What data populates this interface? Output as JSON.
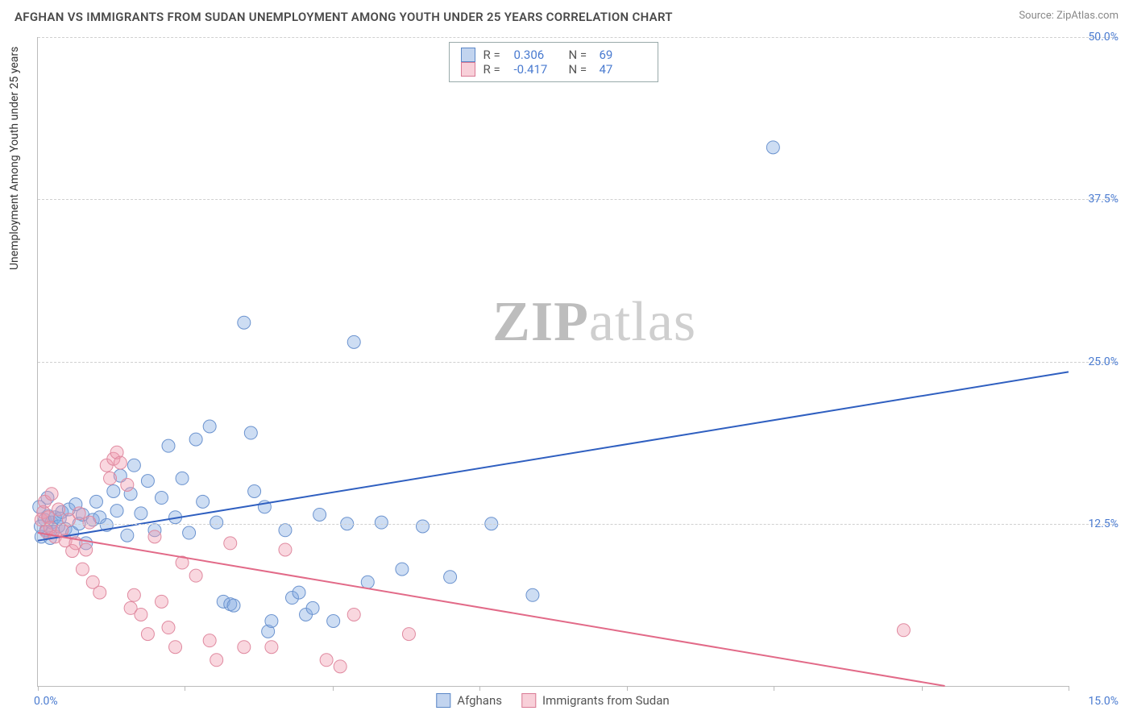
{
  "title": "AFGHAN VS IMMIGRANTS FROM SUDAN UNEMPLOYMENT AMONG YOUTH UNDER 25 YEARS CORRELATION CHART",
  "source_label": "Source:",
  "source_name": "ZipAtlas.com",
  "y_axis_label": "Unemployment Among Youth under 25 years",
  "watermark_a": "ZIP",
  "watermark_b": "atlas",
  "chart": {
    "type": "scatter",
    "xlim": [
      0,
      15
    ],
    "ylim": [
      0,
      50
    ],
    "x_ticks": [
      0,
      2.14,
      4.29,
      6.43,
      8.57,
      10.71,
      12.86,
      15
    ],
    "x_min_label": "0.0%",
    "x_max_label": "15.0%",
    "y_ticks": [
      12.5,
      25.0,
      37.5,
      50.0
    ],
    "y_tick_labels": [
      "12.5%",
      "25.0%",
      "37.5%",
      "50.0%"
    ],
    "grid_color": "#d0d0d0",
    "axis_color": "#bbbbbb",
    "background_color": "#ffffff",
    "tick_label_color": "#4a7bd0",
    "series": [
      {
        "name": "Afghans",
        "color_fill": "rgba(130,170,225,0.40)",
        "color_stroke": "#6b93cf",
        "marker_radius": 8,
        "trend": {
          "x1": 0,
          "y1": 11.2,
          "x2": 15,
          "y2": 24.2,
          "stroke": "#2f5fc0",
          "width": 2
        },
        "R_label": "R =",
        "R_value": "0.306",
        "N_label": "N =",
        "N_value": "69",
        "points": [
          [
            0.05,
            11.5
          ],
          [
            0.1,
            12.8
          ],
          [
            0.12,
            12.0
          ],
          [
            0.15,
            13.1
          ],
          [
            0.18,
            11.4
          ],
          [
            0.2,
            12.6
          ],
          [
            0.22,
            11.9
          ],
          [
            0.25,
            13.0
          ],
          [
            0.3,
            12.3
          ],
          [
            0.32,
            12.9
          ],
          [
            0.35,
            13.4
          ],
          [
            0.4,
            12.1
          ],
          [
            0.45,
            13.6
          ],
          [
            0.5,
            11.8
          ],
          [
            0.55,
            14.0
          ],
          [
            0.6,
            12.5
          ],
          [
            0.65,
            13.2
          ],
          [
            0.7,
            11.0
          ],
          [
            0.8,
            12.8
          ],
          [
            0.85,
            14.2
          ],
          [
            0.9,
            13.0
          ],
          [
            1.0,
            12.4
          ],
          [
            1.1,
            15.0
          ],
          [
            1.15,
            13.5
          ],
          [
            1.2,
            16.2
          ],
          [
            1.3,
            11.6
          ],
          [
            1.35,
            14.8
          ],
          [
            1.4,
            17.0
          ],
          [
            1.5,
            13.3
          ],
          [
            1.6,
            15.8
          ],
          [
            1.7,
            12.0
          ],
          [
            1.8,
            14.5
          ],
          [
            1.9,
            18.5
          ],
          [
            2.0,
            13.0
          ],
          [
            2.1,
            16.0
          ],
          [
            2.2,
            11.8
          ],
          [
            2.3,
            19.0
          ],
          [
            2.4,
            14.2
          ],
          [
            2.5,
            20.0
          ],
          [
            2.6,
            12.6
          ],
          [
            2.7,
            6.5
          ],
          [
            2.8,
            6.3
          ],
          [
            2.85,
            6.2
          ],
          [
            3.0,
            28.0
          ],
          [
            3.1,
            19.5
          ],
          [
            3.15,
            15.0
          ],
          [
            3.3,
            13.8
          ],
          [
            3.35,
            4.2
          ],
          [
            3.4,
            5.0
          ],
          [
            3.6,
            12.0
          ],
          [
            3.7,
            6.8
          ],
          [
            3.8,
            7.2
          ],
          [
            3.9,
            5.5
          ],
          [
            4.0,
            6.0
          ],
          [
            4.1,
            13.2
          ],
          [
            4.3,
            5.0
          ],
          [
            4.5,
            12.5
          ],
          [
            4.6,
            26.5
          ],
          [
            4.8,
            8.0
          ],
          [
            5.0,
            12.6
          ],
          [
            5.3,
            9.0
          ],
          [
            5.6,
            12.3
          ],
          [
            6.0,
            8.4
          ],
          [
            6.6,
            12.5
          ],
          [
            7.2,
            7.0
          ],
          [
            10.7,
            41.5
          ],
          [
            0.02,
            13.8
          ],
          [
            0.04,
            12.3
          ],
          [
            0.14,
            14.5
          ]
        ]
      },
      {
        "name": "Immigrants from Sudan",
        "color_fill": "rgba(240,155,175,0.40)",
        "color_stroke": "#e08aa0",
        "marker_radius": 8,
        "trend": {
          "x1": 0,
          "y1": 11.8,
          "x2": 13.2,
          "y2": 0.0,
          "stroke": "#e26a88",
          "width": 2
        },
        "R_label": "R =",
        "R_value": "-0.417",
        "N_label": "N =",
        "N_value": "47",
        "points": [
          [
            0.05,
            12.8
          ],
          [
            0.08,
            13.4
          ],
          [
            0.1,
            14.2
          ],
          [
            0.12,
            11.9
          ],
          [
            0.15,
            13.0
          ],
          [
            0.18,
            12.2
          ],
          [
            0.2,
            14.8
          ],
          [
            0.25,
            11.5
          ],
          [
            0.3,
            13.6
          ],
          [
            0.35,
            12.0
          ],
          [
            0.4,
            11.2
          ],
          [
            0.45,
            12.8
          ],
          [
            0.5,
            10.4
          ],
          [
            0.55,
            11.0
          ],
          [
            0.6,
            13.3
          ],
          [
            0.65,
            9.0
          ],
          [
            0.7,
            10.5
          ],
          [
            0.75,
            12.6
          ],
          [
            0.8,
            8.0
          ],
          [
            0.9,
            7.2
          ],
          [
            1.0,
            17.0
          ],
          [
            1.05,
            16.0
          ],
          [
            1.1,
            17.5
          ],
          [
            1.15,
            18.0
          ],
          [
            1.2,
            17.2
          ],
          [
            1.3,
            15.5
          ],
          [
            1.35,
            6.0
          ],
          [
            1.4,
            7.0
          ],
          [
            1.5,
            5.5
          ],
          [
            1.6,
            4.0
          ],
          [
            1.7,
            11.5
          ],
          [
            1.8,
            6.5
          ],
          [
            1.9,
            4.5
          ],
          [
            2.0,
            3.0
          ],
          [
            2.1,
            9.5
          ],
          [
            2.3,
            8.5
          ],
          [
            2.5,
            3.5
          ],
          [
            2.6,
            2.0
          ],
          [
            2.8,
            11.0
          ],
          [
            3.0,
            3.0
          ],
          [
            3.4,
            3.0
          ],
          [
            3.6,
            10.5
          ],
          [
            4.2,
            2.0
          ],
          [
            4.4,
            1.5
          ],
          [
            4.6,
            5.5
          ],
          [
            5.4,
            4.0
          ],
          [
            12.6,
            4.3
          ]
        ]
      }
    ]
  },
  "legend_bottom": [
    {
      "swatch": "blue",
      "label": "Afghans"
    },
    {
      "swatch": "pink",
      "label": "Immigrants from Sudan"
    }
  ]
}
